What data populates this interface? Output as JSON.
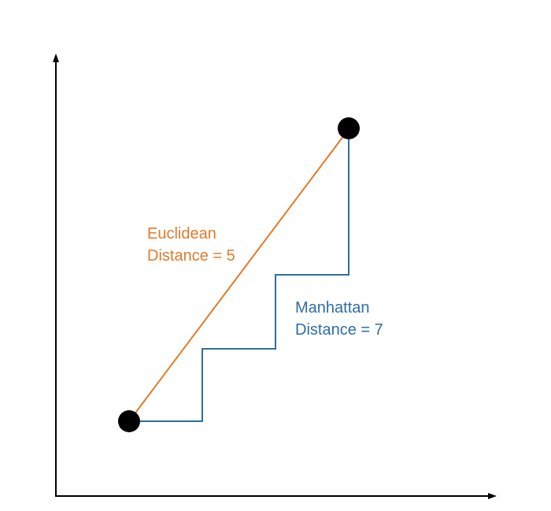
{
  "colors": {
    "axis": "#000000",
    "euclidean": "#E07B2A",
    "manhattan": "#2E6DA4",
    "point": "#000000",
    "background": "#ffffff"
  },
  "labels": {
    "euclidean_line1": "Euclidean",
    "euclidean_line2": "Distance = 5",
    "manhattan_line1": "Manhattan",
    "manhattan_line2": "Distance = 7"
  },
  "points": {
    "start": {
      "x": 0,
      "y": 0
    },
    "end": {
      "x": 3,
      "y": 4
    }
  }
}
